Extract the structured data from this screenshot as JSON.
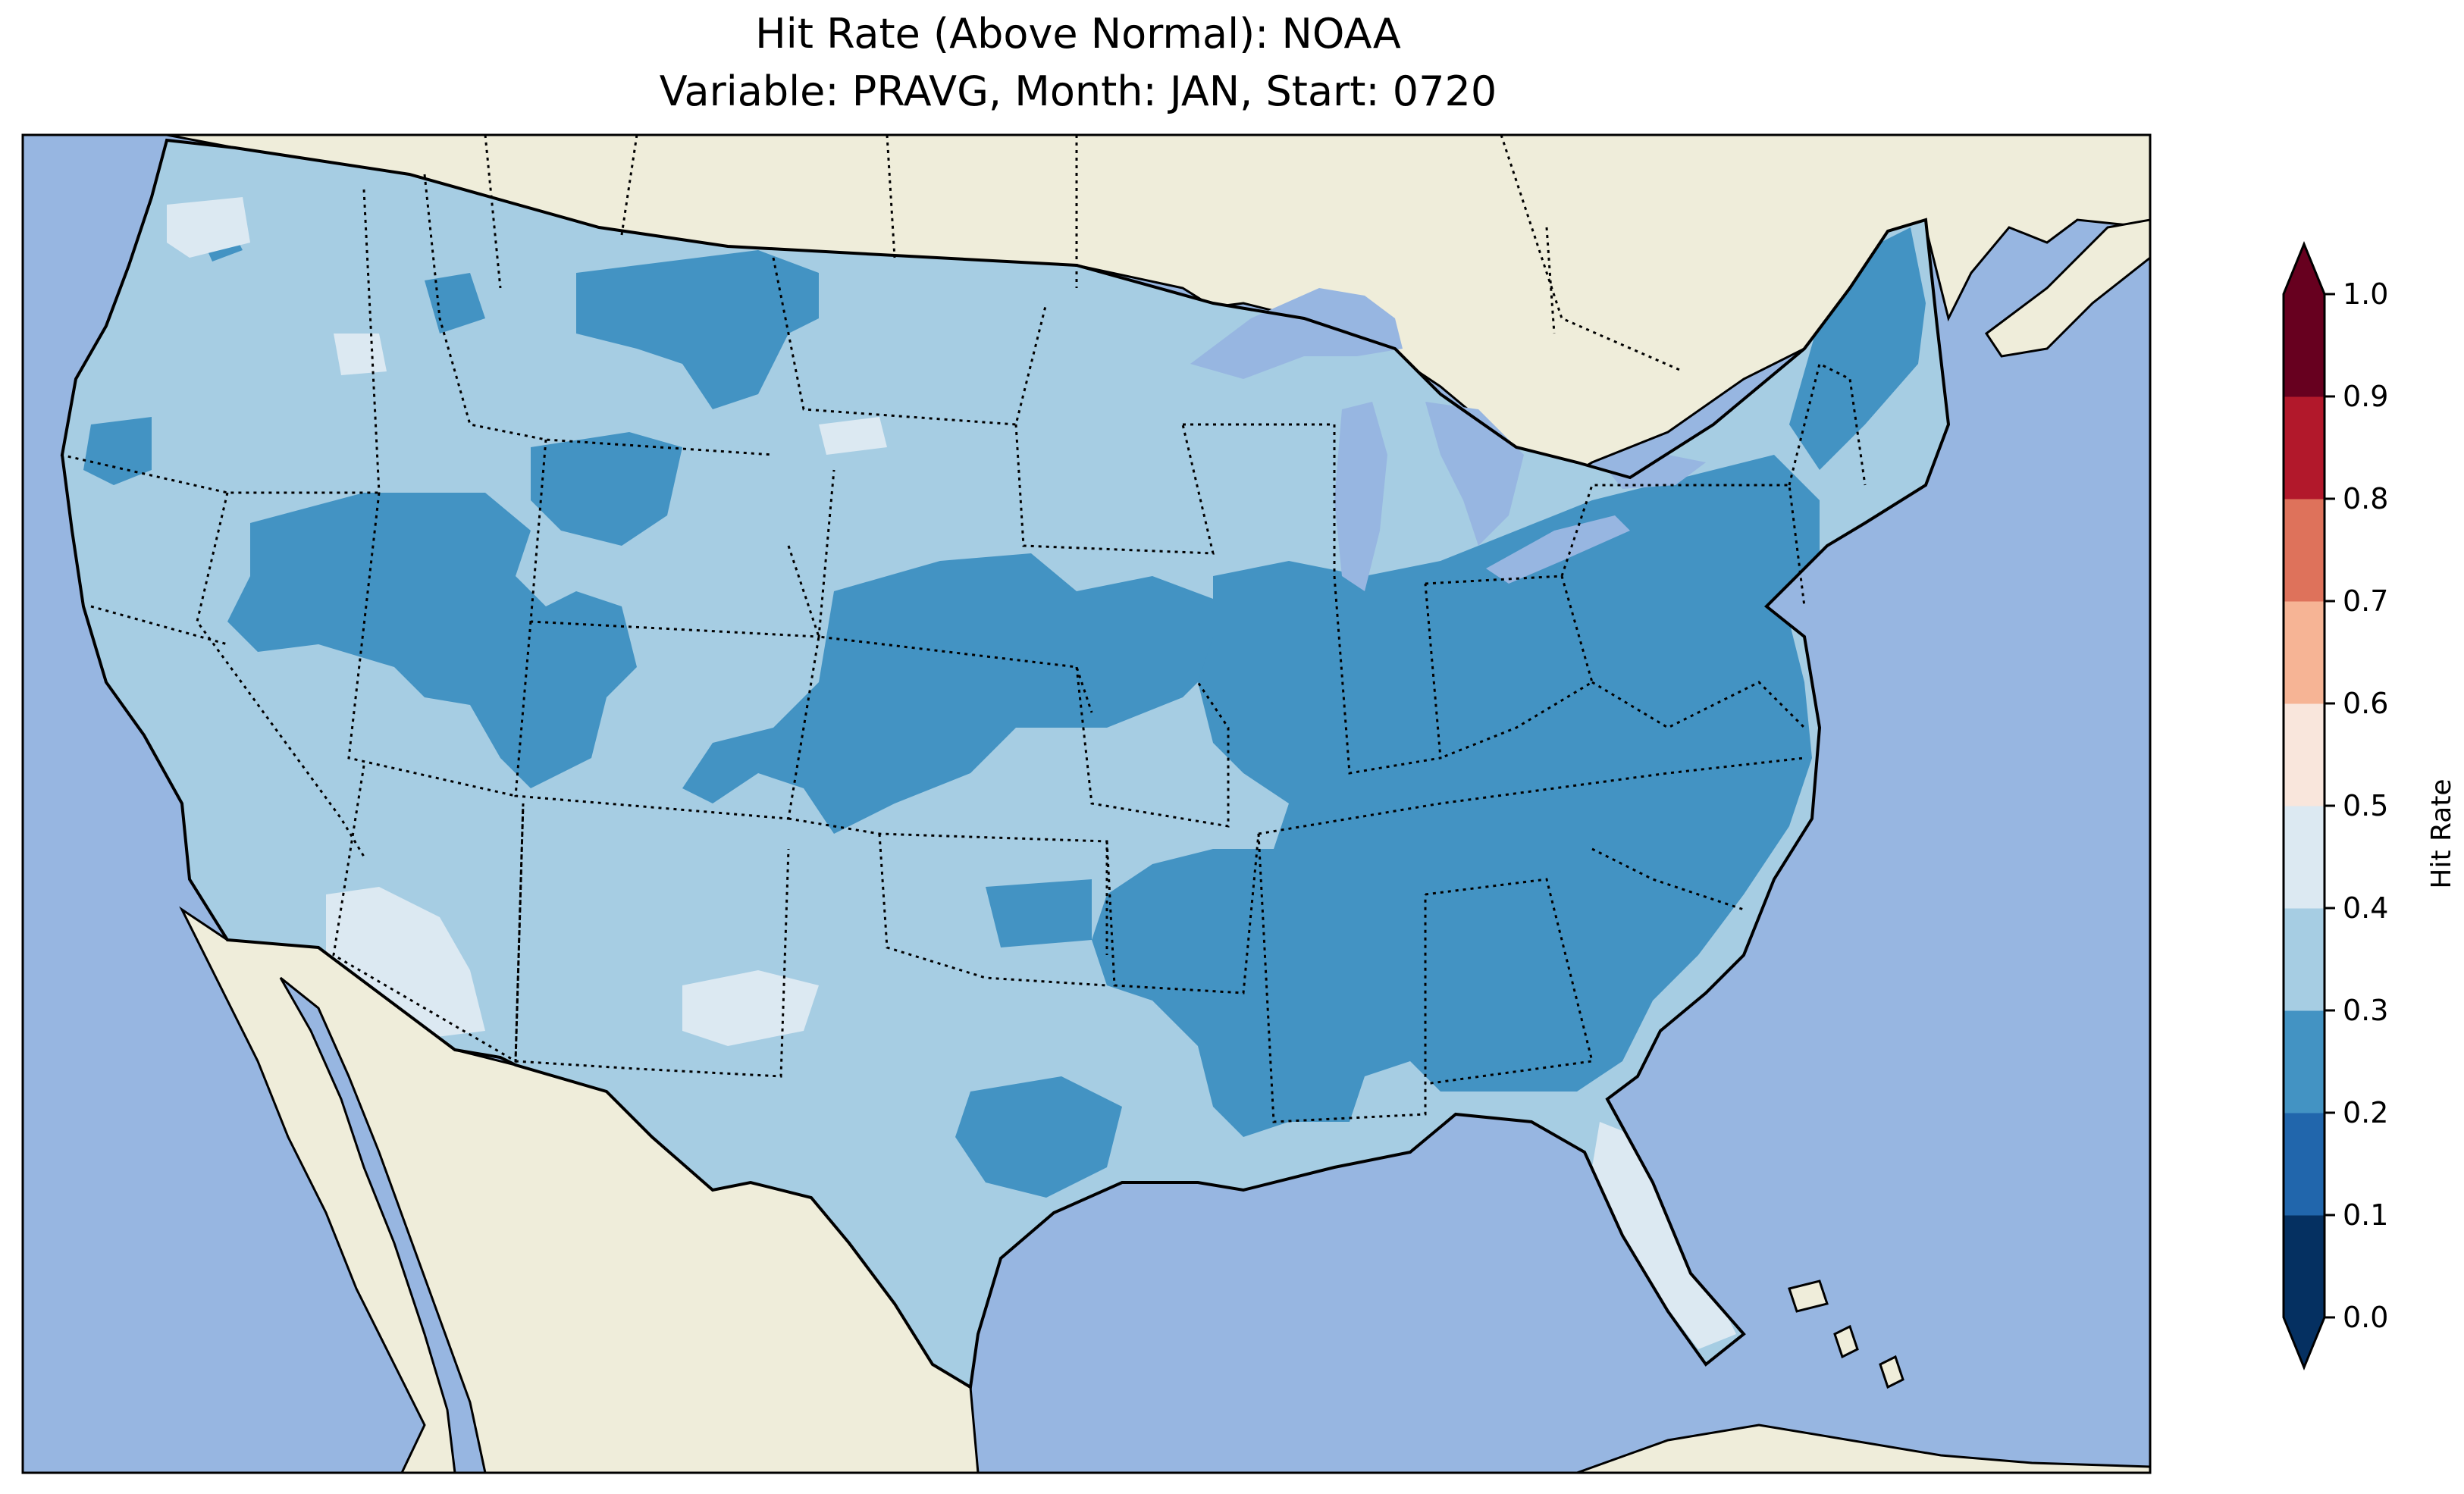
{
  "title_line1": "Hit Rate (Above Normal): NOAA",
  "title_line2": "Variable: PRAVG, Month: JAN, Start: 0720",
  "colorbar": {
    "label": "Hit Rate",
    "ticks": [
      "0.0",
      "0.1",
      "0.2",
      "0.3",
      "0.4",
      "0.5",
      "0.6",
      "0.7",
      "0.8",
      "0.9",
      "1.0"
    ],
    "bins": [
      {
        "min": 0.0,
        "max": 0.1,
        "color": "#053061"
      },
      {
        "min": 0.1,
        "max": 0.2,
        "color": "#2166ac"
      },
      {
        "min": 0.2,
        "max": 0.3,
        "color": "#4393c3"
      },
      {
        "min": 0.3,
        "max": 0.4,
        "color": "#a6cde3"
      },
      {
        "min": 0.4,
        "max": 0.5,
        "color": "#dce9f2"
      },
      {
        "min": 0.5,
        "max": 0.6,
        "color": "#f9e6dc"
      },
      {
        "min": 0.6,
        "max": 0.7,
        "color": "#f6b495"
      },
      {
        "min": 0.7,
        "max": 0.8,
        "color": "#de725b"
      },
      {
        "min": 0.8,
        "max": 0.9,
        "color": "#b2182b"
      },
      {
        "min": 0.9,
        "max": 1.0,
        "color": "#67001f"
      }
    ],
    "under_color": "#053061",
    "over_color": "#67001f"
  },
  "map": {
    "ocean_color": "#97b6e1",
    "land_color": "#efedda",
    "region": "Contiguous United States",
    "field_description": "Hit rate field shaded over the contiguous US, mostly 0.2–0.4 with small 0.4–0.5 areas in Florida, the Southwest and the Pacific Northwest"
  }
}
